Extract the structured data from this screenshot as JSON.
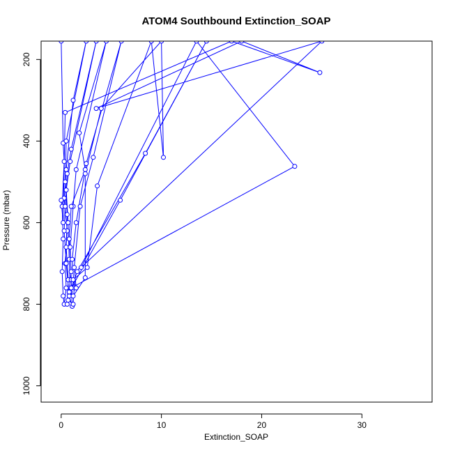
{
  "chart_data": {
    "type": "line",
    "title": "ATOM4 Southbound Extinction_SOAP",
    "xlabel": "Extinction_SOAP",
    "ylabel": "Pressure (mbar)",
    "xlim": [
      -2,
      37
    ],
    "ylim": [
      1040,
      155
    ],
    "y_reversed": true,
    "x_ticks": [
      0,
      10,
      20,
      30
    ],
    "y_ticks": [
      200,
      400,
      600,
      800,
      1000
    ],
    "grid": false,
    "color": "#0000ff",
    "series": [
      {
        "marker": "circle",
        "points": [
          [
            0.0,
            155
          ],
          [
            0.2,
            405
          ],
          [
            0.3,
            450
          ],
          [
            0.1,
            560
          ],
          [
            0.2,
            640
          ],
          [
            0.1,
            720
          ],
          [
            0.2,
            780
          ],
          [
            0.3,
            800
          ],
          [
            0.5,
            760
          ],
          [
            0.4,
            700
          ],
          [
            0.6,
            620
          ],
          [
            0.3,
            540
          ],
          [
            0.5,
            470
          ],
          [
            1.2,
            300
          ],
          [
            2.5,
            155
          ],
          [
            0.5,
            400
          ],
          [
            0.4,
            500
          ],
          [
            0.6,
            580
          ],
          [
            0.5,
            660
          ],
          [
            0.7,
            740
          ],
          [
            0.6,
            800
          ],
          [
            0.9,
            770
          ],
          [
            0.8,
            690
          ],
          [
            0.7,
            600
          ],
          [
            0.5,
            520
          ],
          [
            0.9,
            450
          ],
          [
            3.5,
            155
          ],
          [
            1.0,
            420
          ],
          [
            0.6,
            480
          ],
          [
            0.4,
            560
          ],
          [
            0.3,
            620
          ],
          [
            0.5,
            700
          ],
          [
            0.8,
            780
          ],
          [
            1.1,
            805
          ],
          [
            1.0,
            740
          ],
          [
            0.9,
            660
          ],
          [
            1.2,
            560
          ],
          [
            1.5,
            470
          ],
          [
            4.5,
            155
          ],
          [
            1.8,
            380
          ],
          [
            2.4,
            470
          ],
          [
            1.0,
            560
          ],
          [
            0.8,
            640
          ],
          [
            1.0,
            720
          ],
          [
            0.7,
            790
          ],
          [
            1.2,
            800
          ],
          [
            1.3,
            760
          ],
          [
            1.1,
            690
          ],
          [
            1.5,
            600
          ],
          [
            2.5,
            455
          ],
          [
            6.0,
            155
          ],
          [
            3.2,
            440
          ],
          [
            1.9,
            560
          ],
          [
            1.3,
            710
          ],
          [
            1.5,
            760
          ],
          [
            1.2,
            740
          ],
          [
            2.6,
            710
          ],
          [
            3.6,
            510
          ],
          [
            9.0,
            155
          ],
          [
            10.2,
            440
          ],
          [
            10.0,
            155
          ],
          [
            4.0,
            320
          ],
          [
            2.4,
            480
          ],
          [
            2.4,
            735
          ],
          [
            1.2,
            780
          ],
          [
            0.8,
            770
          ],
          [
            5.9,
            545
          ],
          [
            14.5,
            155
          ],
          [
            8.4,
            430
          ],
          [
            1.6,
            720
          ],
          [
            1.0,
            760
          ],
          [
            23.3,
            462
          ],
          [
            13.5,
            155
          ],
          [
            2.0,
            710
          ],
          [
            26.0,
            155
          ],
          [
            3.5,
            320
          ],
          [
            18.0,
            155
          ],
          [
            25.8,
            232
          ],
          [
            17.0,
            155
          ],
          [
            0.4,
            330
          ],
          [
            0.2,
            600
          ],
          [
            0.0,
            545
          ]
        ]
      }
    ]
  }
}
